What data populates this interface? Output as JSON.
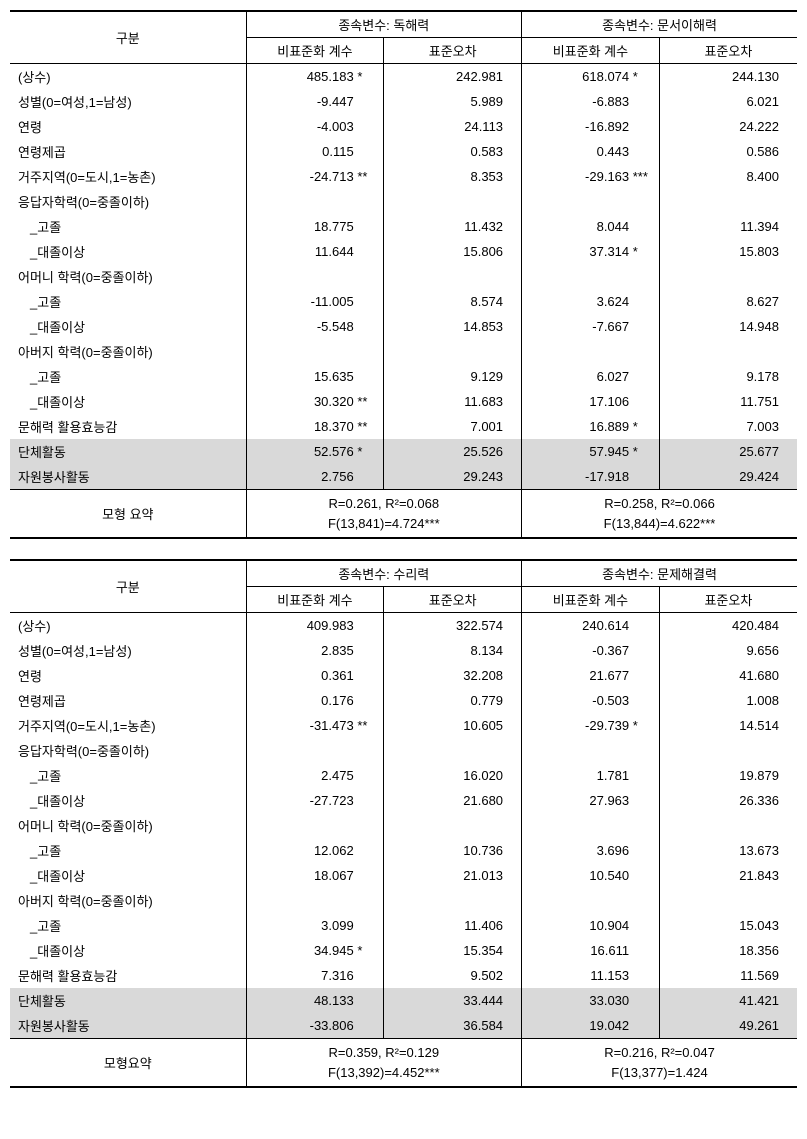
{
  "labels": {
    "category": "구분",
    "depvar_prefix": "종속변수: ",
    "coef": "비표준화 계수",
    "se": "표준오차",
    "summary": "모형 요약",
    "summary2": "모형요약"
  },
  "rows": [
    {
      "k": "constant",
      "label": "(상수)",
      "indent": false
    },
    {
      "k": "gender",
      "label": "성별(0=여성,1=남성)",
      "indent": false
    },
    {
      "k": "age",
      "label": "연령",
      "indent": false
    },
    {
      "k": "age2",
      "label": "연령제곱",
      "indent": false
    },
    {
      "k": "region",
      "label": "거주지역(0=도시,1=농촌)",
      "indent": false
    },
    {
      "k": "edu_hdr",
      "label": "응답자학력(0=중졸이하)",
      "indent": false,
      "blank": true
    },
    {
      "k": "edu_hs",
      "label": "_고졸",
      "indent": true
    },
    {
      "k": "edu_col",
      "label": "_대졸이상",
      "indent": true
    },
    {
      "k": "medu_hdr",
      "label": "어머니 학력(0=중졸이하)",
      "indent": false,
      "blank": true
    },
    {
      "k": "medu_hs",
      "label": "_고졸",
      "indent": true
    },
    {
      "k": "medu_col",
      "label": "_대졸이상",
      "indent": true
    },
    {
      "k": "fedu_hdr",
      "label": "아버지 학력(0=중졸이하)",
      "indent": false,
      "blank": true
    },
    {
      "k": "fedu_hs",
      "label": "_고졸",
      "indent": true
    },
    {
      "k": "fedu_col",
      "label": "_대졸이상",
      "indent": true
    },
    {
      "k": "efficacy",
      "label": "문해력 활용효능감",
      "indent": false
    },
    {
      "k": "group",
      "label": "단체활동",
      "indent": false,
      "shaded": true
    },
    {
      "k": "volunteer",
      "label": "자원봉사활동",
      "indent": false,
      "shaded": true
    }
  ],
  "table1": {
    "dv1": "독해력",
    "dv2": "문서이해력",
    "data": {
      "constant": {
        "c1": "485.183",
        "s1": "*",
        "e1": "242.981",
        "c2": "618.074",
        "s2": "*",
        "e2": "244.130"
      },
      "gender": {
        "c1": "-9.447",
        "s1": "",
        "e1": "5.989",
        "c2": "-6.883",
        "s2": "",
        "e2": "6.021"
      },
      "age": {
        "c1": "-4.003",
        "s1": "",
        "e1": "24.113",
        "c2": "-16.892",
        "s2": "",
        "e2": "24.222"
      },
      "age2": {
        "c1": "0.115",
        "s1": "",
        "e1": "0.583",
        "c2": "0.443",
        "s2": "",
        "e2": "0.586"
      },
      "region": {
        "c1": "-24.713",
        "s1": "**",
        "e1": "8.353",
        "c2": "-29.163",
        "s2": "***",
        "e2": "8.400"
      },
      "edu_hs": {
        "c1": "18.775",
        "s1": "",
        "e1": "11.432",
        "c2": "8.044",
        "s2": "",
        "e2": "11.394"
      },
      "edu_col": {
        "c1": "11.644",
        "s1": "",
        "e1": "15.806",
        "c2": "37.314",
        "s2": "*",
        "e2": "15.803"
      },
      "medu_hs": {
        "c1": "-11.005",
        "s1": "",
        "e1": "8.574",
        "c2": "3.624",
        "s2": "",
        "e2": "8.627"
      },
      "medu_col": {
        "c1": "-5.548",
        "s1": "",
        "e1": "14.853",
        "c2": "-7.667",
        "s2": "",
        "e2": "14.948"
      },
      "fedu_hs": {
        "c1": "15.635",
        "s1": "",
        "e1": "9.129",
        "c2": "6.027",
        "s2": "",
        "e2": "9.178"
      },
      "fedu_col": {
        "c1": "30.320",
        "s1": "**",
        "e1": "11.683",
        "c2": "17.106",
        "s2": "",
        "e2": "11.751"
      },
      "efficacy": {
        "c1": "18.370",
        "s1": "**",
        "e1": "7.001",
        "c2": "16.889",
        "s2": "*",
        "e2": "7.003"
      },
      "group": {
        "c1": "52.576",
        "s1": "*",
        "e1": "25.526",
        "c2": "57.945",
        "s2": "*",
        "e2": "25.677"
      },
      "volunteer": {
        "c1": "2.756",
        "s1": "",
        "e1": "29.243",
        "c2": "-17.918",
        "s2": "",
        "e2": "29.424"
      }
    },
    "summary1_l1": "R=0.261,  R²=0.068",
    "summary1_l2": "F(13,841)=4.724***",
    "summary2_l1": "R=0.258,  R²=0.066",
    "summary2_l2": "F(13,844)=4.622***"
  },
  "table2": {
    "dv1": "수리력",
    "dv2": "문제해결력",
    "data": {
      "constant": {
        "c1": "409.983",
        "s1": "",
        "e1": "322.574",
        "c2": "240.614",
        "s2": "",
        "e2": "420.484"
      },
      "gender": {
        "c1": "2.835",
        "s1": "",
        "e1": "8.134",
        "c2": "-0.367",
        "s2": "",
        "e2": "9.656"
      },
      "age": {
        "c1": "0.361",
        "s1": "",
        "e1": "32.208",
        "c2": "21.677",
        "s2": "",
        "e2": "41.680"
      },
      "age2": {
        "c1": "0.176",
        "s1": "",
        "e1": "0.779",
        "c2": "-0.503",
        "s2": "",
        "e2": "1.008"
      },
      "region": {
        "c1": "-31.473",
        "s1": "**",
        "e1": "10.605",
        "c2": "-29.739",
        "s2": "*",
        "e2": "14.514"
      },
      "edu_hs": {
        "c1": "2.475",
        "s1": "",
        "e1": "16.020",
        "c2": "1.781",
        "s2": "",
        "e2": "19.879"
      },
      "edu_col": {
        "c1": "-27.723",
        "s1": "",
        "e1": "21.680",
        "c2": "27.963",
        "s2": "",
        "e2": "26.336"
      },
      "medu_hs": {
        "c1": "12.062",
        "s1": "",
        "e1": "10.736",
        "c2": "3.696",
        "s2": "",
        "e2": "13.673"
      },
      "medu_col": {
        "c1": "18.067",
        "s1": "",
        "e1": "21.013",
        "c2": "10.540",
        "s2": "",
        "e2": "21.843"
      },
      "fedu_hs": {
        "c1": "3.099",
        "s1": "",
        "e1": "11.406",
        "c2": "10.904",
        "s2": "",
        "e2": "15.043"
      },
      "fedu_col": {
        "c1": "34.945",
        "s1": "*",
        "e1": "15.354",
        "c2": "16.611",
        "s2": "",
        "e2": "18.356"
      },
      "efficacy": {
        "c1": "7.316",
        "s1": "",
        "e1": "9.502",
        "c2": "11.153",
        "s2": "",
        "e2": "11.569"
      },
      "group": {
        "c1": "48.133",
        "s1": "",
        "e1": "33.444",
        "c2": "33.030",
        "s2": "",
        "e2": "41.421"
      },
      "volunteer": {
        "c1": "-33.806",
        "s1": "",
        "e1": "36.584",
        "c2": "19.042",
        "s2": "",
        "e2": "49.261"
      }
    },
    "summary1_l1": "R=0.359,  R²=0.129",
    "summary1_l2": "F(13,392)=4.452***",
    "summary2_l1": "R=0.216,  R²=0.047",
    "summary2_l2": "F(13,377)=1.424"
  }
}
